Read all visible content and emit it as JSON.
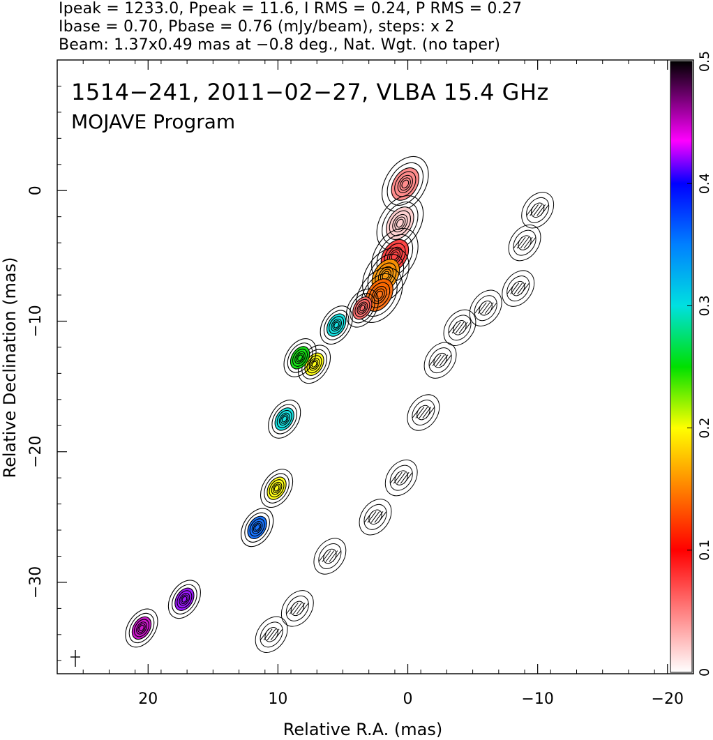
{
  "header": {
    "line1": "Ipeak = 1233.0, Ppeak = 11.6, I RMS = 0.24, P RMS = 0.27",
    "line2": "Ibase = 0.70, Pbase = 0.76 (mJy/beam), steps: x 2",
    "line3": "Beam: 1.37x0.49 mas at −0.8 deg., Nat. Wgt. (no taper)"
  },
  "chart_data": {
    "type": "contour",
    "title": "1514−241, 2011−02−27, VLBA 15.4 GHz",
    "subtitle": "MOJAVE Program",
    "xlabel": "Relative R.A. (mas)",
    "ylabel": "Relative Declination (mas)",
    "xlim": [
      27,
      -22
    ],
    "ylim": [
      -37,
      10
    ],
    "xticks": [
      20,
      10,
      0,
      -10,
      -20
    ],
    "xtick_labels": [
      "20",
      "10",
      "0",
      "−10",
      "−20"
    ],
    "yticks": [
      0,
      -10,
      -20,
      -30
    ],
    "ytick_labels": [
      "0",
      "−10",
      "−20",
      "−30"
    ],
    "colorbar": {
      "range": [
        0,
        0.5
      ],
      "ticks": [
        0,
        0.1,
        0.2,
        0.3,
        0.4,
        0.5
      ],
      "tick_labels": [
        "0",
        "0.1",
        "0.2",
        "0.3",
        "0.4",
        "0.5"
      ]
    },
    "left_jet": [
      {
        "x": 0.2,
        "y": 0.5,
        "c": 0.05
      },
      {
        "x": 0.6,
        "y": -2.5,
        "c": 0.02
      },
      {
        "x": 1.0,
        "y": -5.0,
        "c": 0.08
      },
      {
        "x": 1.7,
        "y": -6.5,
        "c": 0.16
      },
      {
        "x": 2.2,
        "y": -8.0,
        "c": 0.14
      },
      {
        "x": 3.5,
        "y": -9.0,
        "c": 0.06
      },
      {
        "x": 5.5,
        "y": -10.3,
        "c": 0.3
      },
      {
        "x": 7.2,
        "y": -13.3,
        "c": 0.2
      },
      {
        "x": 8.3,
        "y": -12.8,
        "c": 0.25
      },
      {
        "x": 9.5,
        "y": -17.5,
        "c": 0.3
      },
      {
        "x": 10.1,
        "y": -22.8,
        "c": 0.2
      },
      {
        "x": 11.6,
        "y": -25.8,
        "c": 0.36
      },
      {
        "x": 17.2,
        "y": -31.3,
        "c": 0.42
      },
      {
        "x": 20.5,
        "y": -33.5,
        "c": 0.45
      }
    ],
    "right_jet": [
      {
        "x": -10.0,
        "y": -1.5
      },
      {
        "x": -9.0,
        "y": -4.0
      },
      {
        "x": -8.5,
        "y": -7.5
      },
      {
        "x": -6.0,
        "y": -9.0
      },
      {
        "x": -4.0,
        "y": -10.5
      },
      {
        "x": -2.5,
        "y": -13.0
      },
      {
        "x": -1.2,
        "y": -17.0
      },
      {
        "x": 0.5,
        "y": -22.0
      },
      {
        "x": 2.5,
        "y": -25.0
      },
      {
        "x": 6.0,
        "y": -28.0
      },
      {
        "x": 8.5,
        "y": -32.0
      },
      {
        "x": 10.5,
        "y": -34.0
      }
    ]
  }
}
